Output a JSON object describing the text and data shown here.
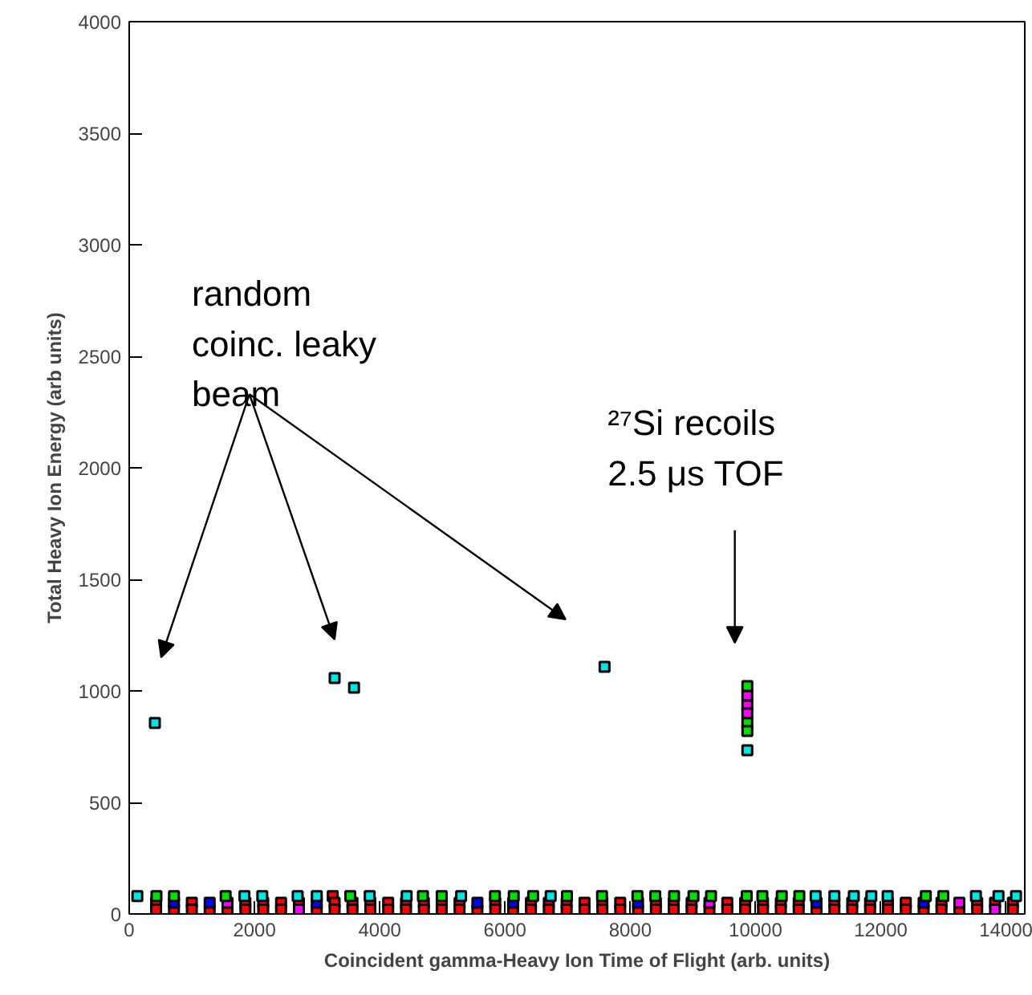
{
  "chart_data": {
    "type": "scatter",
    "xlabel": "Coincident gamma-Heavy Ion Time of Flight (arb. units)",
    "ylabel": "Total Heavy Ion Energy (arb units)",
    "xlim": [
      0,
      14300
    ],
    "ylim": [
      0,
      4000
    ],
    "xticks": [
      0,
      2000,
      4000,
      6000,
      8000,
      10000,
      12000,
      14000
    ],
    "yticks": [
      0,
      500,
      1000,
      1500,
      2000,
      2500,
      3000,
      3500,
      4000
    ],
    "marker": "square",
    "grid": false,
    "annotations": [
      "random\ncoinc. leaky\nbeam",
      "²⁷Si recoils\n2.5 μs TOF"
    ],
    "series": [
      {
        "color": "#00e5e5",
        "x": [
          130,
          1840,
          2125,
          2690,
          2995,
          3840,
          4430,
          5300,
          6730,
          10960,
          11260,
          11570,
          11850,
          12110,
          13520,
          13880,
          14160,
          410,
          3280,
          3590,
          7590,
          9870
        ],
        "values": [
          80,
          80,
          80,
          80,
          80,
          80,
          80,
          80,
          80,
          80,
          80,
          80,
          80,
          80,
          80,
          80,
          80,
          856,
          1058,
          1014,
          1108,
          734
        ]
      },
      {
        "color": "#00e000",
        "x": [
          435,
          715,
          1540,
          3530,
          4690,
          4990,
          5840,
          6140,
          6450,
          6990,
          7550,
          8115,
          8400,
          8700,
          9010,
          9290,
          9860,
          10110,
          10420,
          10700,
          12720,
          13000,
          9870,
          9870,
          9870
        ],
        "values": [
          80,
          80,
          80,
          80,
          80,
          80,
          80,
          80,
          80,
          80,
          80,
          80,
          80,
          80,
          80,
          80,
          80,
          80,
          80,
          80,
          80,
          80,
          1022,
          856,
          820
        ]
      },
      {
        "color": "#ff00ff",
        "x": [
          9870,
          9870,
          9870,
          1570,
          9265,
          13255,
          2710,
          13825
        ],
        "values": [
          978,
          935,
          899,
          50,
          50,
          50,
          20,
          20
        ]
      },
      {
        "color": "#0000ff",
        "x": [
          715,
          1285,
          2995,
          5560,
          6130,
          8125,
          10975,
          12685
        ],
        "values": [
          50,
          50,
          50,
          50,
          50,
          50,
          50,
          50
        ]
      },
      {
        "color": "#ff0000",
        "x": [
          3250,
          430,
          1000,
          1855,
          2140,
          2425,
          2710,
          3280,
          3565,
          3850,
          4135,
          4420,
          4705,
          4990,
          5275,
          5845,
          6415,
          6700,
          6985,
          7270,
          7555,
          7840,
          8410,
          8695,
          8980,
          9550,
          9835,
          10120,
          10405,
          10690,
          11260,
          11545,
          11830,
          12115,
          12400,
          12970,
          13540,
          13825,
          14110,
          430,
          715,
          1000,
          1285,
          1570,
          1855,
          2140,
          2425,
          2995,
          3280,
          3565,
          3850,
          4135,
          4420,
          4705,
          4990,
          5275,
          5560,
          5845,
          6130,
          6415,
          6700,
          6985,
          7270,
          7555,
          7840,
          8125,
          8410,
          8695,
          8980,
          9265,
          9550,
          9835,
          10120,
          10405,
          10690,
          10975,
          11260,
          11545,
          11830,
          12115,
          12400,
          12685,
          12970,
          13255,
          13540,
          14110
        ],
        "values": [
          80,
          50,
          50,
          50,
          50,
          50,
          50,
          50,
          50,
          50,
          50,
          50,
          50,
          50,
          50,
          50,
          50,
          50,
          50,
          50,
          50,
          50,
          50,
          50,
          50,
          50,
          50,
          50,
          50,
          50,
          50,
          50,
          50,
          50,
          50,
          50,
          50,
          50,
          50,
          20,
          20,
          20,
          20,
          20,
          20,
          20,
          20,
          20,
          20,
          20,
          20,
          20,
          20,
          20,
          20,
          20,
          20,
          20,
          20,
          20,
          20,
          20,
          20,
          20,
          20,
          20,
          20,
          20,
          20,
          20,
          20,
          20,
          20,
          20,
          20,
          20,
          20,
          20,
          20,
          20,
          20,
          20,
          20,
          20,
          20,
          20
        ]
      }
    ]
  }
}
